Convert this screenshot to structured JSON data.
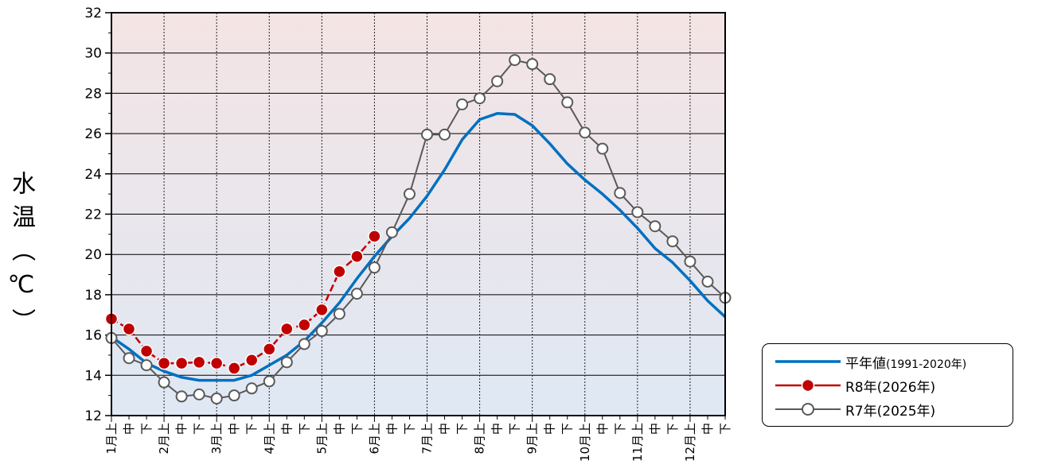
{
  "chart_data": {
    "type": "line",
    "ylabel": "水温（℃）",
    "ylim": [
      12,
      32
    ],
    "yticks": [
      "12",
      "14",
      "16",
      "18",
      "20",
      "22",
      "24",
      "26",
      "28",
      "30",
      "32"
    ],
    "grid": true,
    "legend_position": "right",
    "background_gradient": {
      "top": "#f4e4e4",
      "bottom": "#dfe8f4"
    },
    "x": [
      "1月上",
      "1月中",
      "1月下",
      "2月上",
      "2月中",
      "2月下",
      "3月上",
      "3月中",
      "3月下",
      "4月上",
      "4月中",
      "4月下",
      "5月上",
      "5月中",
      "5月下",
      "6月上",
      "6月中",
      "6月下",
      "7月上",
      "7月中",
      "7月下",
      "8月上",
      "8月中",
      "8月下",
      "9月上",
      "9月中",
      "9月下",
      "10月上",
      "10月中",
      "10月下",
      "11月上",
      "11月中",
      "11月下",
      "12月上",
      "12月中",
      "12月下"
    ],
    "month_labels": [
      "1月",
      "2月",
      "3月",
      "4月",
      "5月",
      "6月",
      "7月",
      "8月",
      "9月",
      "10月",
      "11月",
      "12月"
    ],
    "dekad_labels": [
      "上",
      "中",
      "下"
    ],
    "series": [
      {
        "name": "平年値",
        "name_note": "(1991-2020年)",
        "color": "#0070c0",
        "marker": "none",
        "values": [
          15.9,
          15.3,
          14.6,
          14.2,
          13.9,
          13.75,
          13.75,
          13.75,
          14.0,
          14.5,
          15.0,
          15.7,
          16.6,
          17.6,
          18.8,
          19.9,
          20.9,
          21.8,
          22.9,
          24.2,
          25.7,
          26.7,
          27.0,
          26.95,
          26.4,
          25.5,
          24.5,
          23.7,
          23.0,
          22.2,
          21.3,
          20.3,
          19.6,
          18.7,
          17.7,
          16.9
        ]
      },
      {
        "name": "R8年(2026年)",
        "color": "#c00000",
        "marker": "filled",
        "values": [
          16.8,
          16.3,
          15.2,
          14.6,
          14.6,
          14.65,
          14.6,
          14.35,
          14.75,
          15.3,
          16.3,
          16.5,
          17.25,
          19.15,
          19.9,
          20.9,
          null,
          null,
          null,
          null,
          null,
          null,
          null,
          null,
          null,
          null,
          null,
          null,
          null,
          null,
          null,
          null,
          null,
          null,
          null,
          null
        ]
      },
      {
        "name": "R7年(2025年)",
        "color": "#595959",
        "marker": "open",
        "values": [
          15.85,
          14.85,
          14.5,
          13.65,
          12.95,
          13.05,
          12.85,
          13.0,
          13.35,
          13.7,
          14.65,
          15.55,
          16.2,
          17.05,
          18.05,
          19.35,
          21.1,
          23.0,
          25.95,
          25.95,
          27.45,
          27.75,
          28.6,
          29.65,
          29.45,
          28.7,
          27.55,
          26.05,
          25.25,
          23.05,
          22.1,
          21.4,
          20.65,
          19.65,
          18.65,
          17.85
        ]
      }
    ]
  }
}
